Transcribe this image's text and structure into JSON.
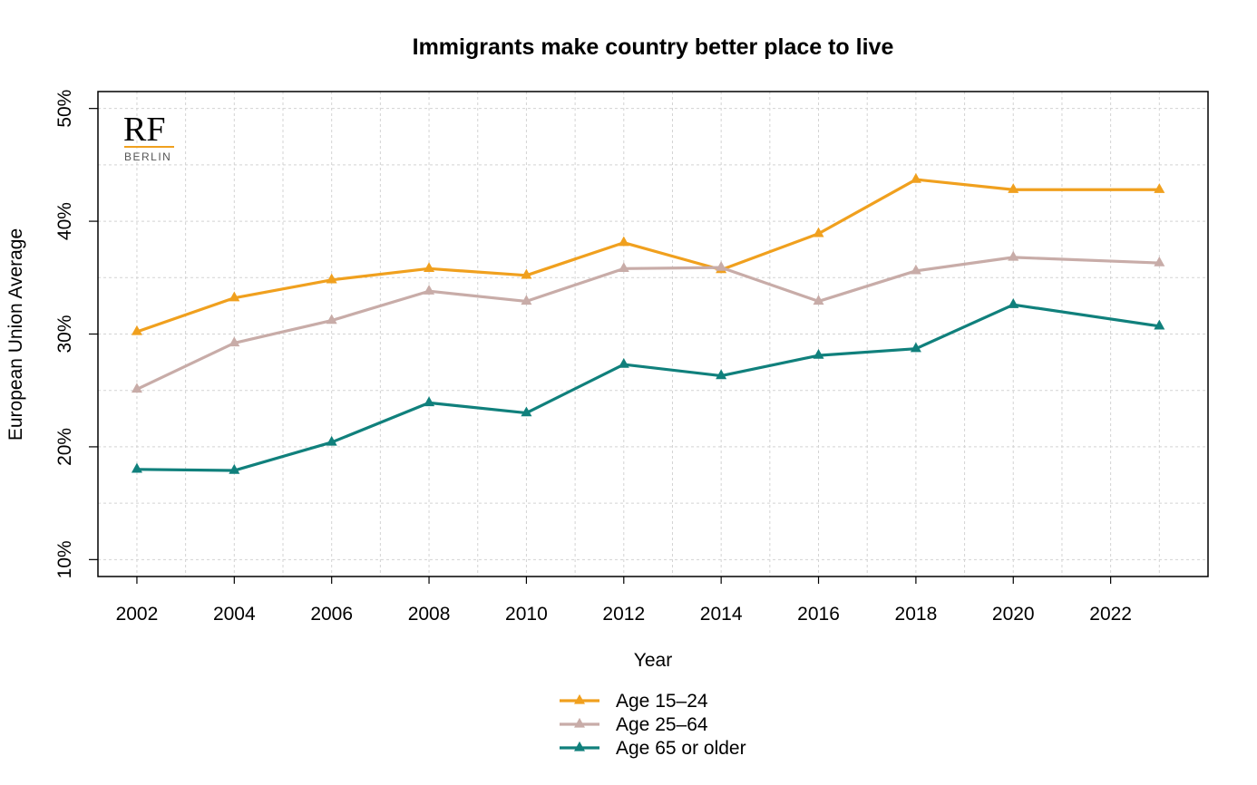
{
  "chart_data": {
    "type": "line",
    "title": "Immigrants make country better place to live",
    "xlabel": "Year",
    "ylabel": "European Union Average",
    "xlim": [
      2001.2,
      2024.0
    ],
    "ylim": [
      8.5,
      51.5
    ],
    "x_ticks": [
      2002,
      2004,
      2006,
      2008,
      2010,
      2012,
      2014,
      2016,
      2018,
      2020,
      2022
    ],
    "x_tick_labels": [
      "2002",
      "2004",
      "2006",
      "2008",
      "2010",
      "2012",
      "2014",
      "2016",
      "2018",
      "2020",
      "2022"
    ],
    "y_ticks": [
      10,
      20,
      30,
      40,
      50
    ],
    "y_tick_labels": [
      "10%",
      "20%",
      "30%",
      "40%",
      "50%"
    ],
    "grid": true,
    "legend_position": "bottom",
    "x": [
      2002,
      2004,
      2006,
      2008,
      2010,
      2012,
      2014,
      2016,
      2018,
      2020,
      2023
    ],
    "series": [
      {
        "name": "Age 15–24",
        "color": "#F0A01E",
        "marker": "triangle",
        "values": [
          30.2,
          33.2,
          34.8,
          35.8,
          35.2,
          38.1,
          35.7,
          38.9,
          43.7,
          42.8,
          42.8
        ]
      },
      {
        "name": "Age 25–64",
        "color": "#C8ACA8",
        "marker": "triangle",
        "values": [
          25.1,
          29.2,
          31.2,
          33.8,
          32.9,
          35.8,
          35.9,
          32.9,
          35.6,
          36.8,
          36.3
        ]
      },
      {
        "name": "Age 65 or older",
        "color": "#10807C",
        "marker": "triangle",
        "values": [
          18.0,
          17.9,
          20.4,
          23.9,
          23.0,
          27.3,
          26.3,
          28.1,
          28.7,
          32.6,
          30.7
        ]
      }
    ]
  },
  "logo": {
    "mark": "RF",
    "subtitle": "BERLIN",
    "accent_color": "#F0A01E",
    "subtitle_color": "#555555"
  }
}
